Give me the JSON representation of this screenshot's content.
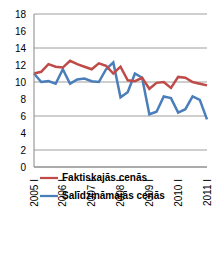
{
  "chart_data": {
    "type": "line",
    "categories": [
      "2005 I",
      null,
      null,
      null,
      "2006 I",
      null,
      null,
      null,
      "2007 I",
      null,
      null,
      null,
      "2008 I",
      null,
      null,
      null,
      "2009 I",
      null,
      null,
      null,
      "2010 I",
      null,
      null,
      null,
      "2011 I"
    ],
    "series": [
      {
        "name": "Salīdzināmajās cenās",
        "color": "#4a7ebb",
        "marker": "none",
        "values": [
          11.0,
          10.0,
          10.1,
          9.8,
          11.5,
          9.8,
          10.3,
          10.4,
          10.1,
          10.0,
          11.5,
          12.3,
          8.2,
          8.8,
          11.0,
          10.5,
          6.2,
          6.5,
          8.3,
          8.1,
          6.4,
          6.8,
          8.3,
          7.9,
          5.6
        ]
      },
      {
        "name": "Faktiskajās cenās",
        "color": "#be4b48",
        "marker": "none",
        "values": [
          11.0,
          11.2,
          12.1,
          11.8,
          11.7,
          12.5,
          12.1,
          11.8,
          11.5,
          12.2,
          11.9,
          11.0,
          11.8,
          10.2,
          10.1,
          10.5,
          9.2,
          9.9,
          10.0,
          9.3,
          10.6,
          10.5,
          10.0,
          9.8,
          9.6
        ]
      }
    ],
    "ylim": [
      0,
      18
    ],
    "yticks": [
      0,
      2,
      4,
      6,
      8,
      10,
      12,
      14,
      16,
      18
    ],
    "grid": true,
    "legend": "lower left"
  }
}
